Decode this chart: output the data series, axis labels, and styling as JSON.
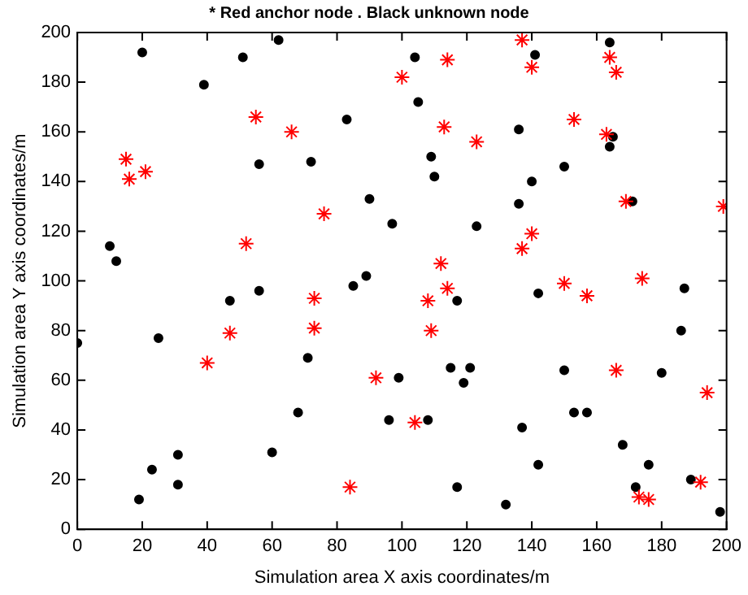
{
  "chart_data": {
    "type": "scatter",
    "title": "* Red anchor node . Black unknown node",
    "xlabel": "Simulation area X axis coordinates/m",
    "ylabel": "Simulation area Y axis coordinates/m",
    "xlim": [
      0,
      200
    ],
    "ylim": [
      0,
      200
    ],
    "xticks": [
      0,
      20,
      40,
      60,
      80,
      100,
      120,
      140,
      160,
      180,
      200
    ],
    "yticks": [
      0,
      20,
      40,
      60,
      80,
      100,
      120,
      140,
      160,
      180,
      200
    ],
    "grid": false,
    "legend": false,
    "series": [
      {
        "color": "#ff0000",
        "marker": "cross",
        "x": [
          15,
          16,
          21,
          40,
          47,
          52,
          55,
          66,
          73,
          73,
          76,
          84,
          92,
          100,
          104,
          108,
          109,
          112,
          113,
          114,
          114,
          123,
          137,
          137,
          140,
          140,
          150,
          153,
          157,
          163,
          164,
          166,
          166,
          169,
          174,
          173,
          176,
          192,
          194,
          199
        ],
        "values": [
          149,
          141,
          144,
          67,
          79,
          115,
          166,
          160,
          93,
          81,
          127,
          17,
          61,
          182,
          43,
          92,
          80,
          107,
          162,
          97,
          189,
          156,
          113,
          197,
          119,
          186,
          99,
          165,
          94,
          159,
          190,
          64,
          184,
          132,
          101,
          13,
          12,
          19,
          55,
          130
        ]
      },
      {
        "color": "#000000",
        "marker": "circle",
        "x": [
          0,
          10,
          12,
          19,
          20,
          23,
          25,
          31,
          31,
          39,
          47,
          51,
          56,
          56,
          60,
          62,
          68,
          71,
          72,
          83,
          85,
          89,
          90,
          96,
          97,
          99,
          104,
          105,
          108,
          109,
          110,
          115,
          117,
          117,
          119,
          121,
          123,
          136,
          136,
          137,
          140,
          141,
          142,
          142,
          150,
          150,
          153,
          157,
          164,
          164,
          165,
          168,
          171,
          172,
          176,
          180,
          186,
          187,
          189,
          198,
          132
        ],
        "values": [
          75,
          114,
          108,
          12,
          192,
          24,
          77,
          30,
          18,
          179,
          92,
          190,
          147,
          96,
          31,
          197,
          47,
          69,
          148,
          165,
          98,
          102,
          133,
          44,
          123,
          61,
          190,
          172,
          44,
          150,
          142,
          65,
          92,
          17,
          59,
          65,
          122,
          161,
          131,
          41,
          140,
          191,
          95,
          26,
          146,
          64,
          47,
          47,
          196,
          154,
          158,
          34,
          132,
          17,
          26,
          63,
          80,
          97,
          20,
          7,
          10
        ]
      }
    ]
  }
}
